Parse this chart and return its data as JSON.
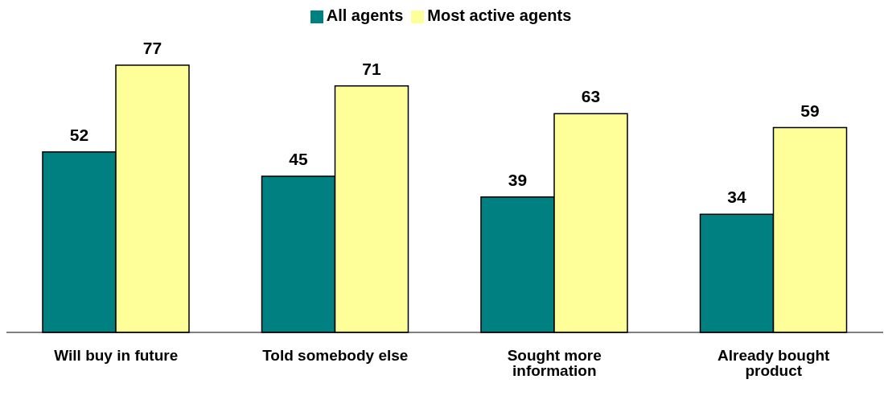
{
  "chart_data": {
    "type": "bar",
    "categories": [
      "Will buy in future",
      "Told somebody else",
      "Sought more information",
      "Already bought product"
    ],
    "series": [
      {
        "name": "All agents",
        "color": "#008080",
        "values": [
          52,
          45,
          39,
          34
        ]
      },
      {
        "name": "Most active agents",
        "color": "#ffff99",
        "values": [
          77,
          71,
          63,
          59
        ]
      }
    ],
    "data_labels": true,
    "legend": "top",
    "grid": false
  }
}
